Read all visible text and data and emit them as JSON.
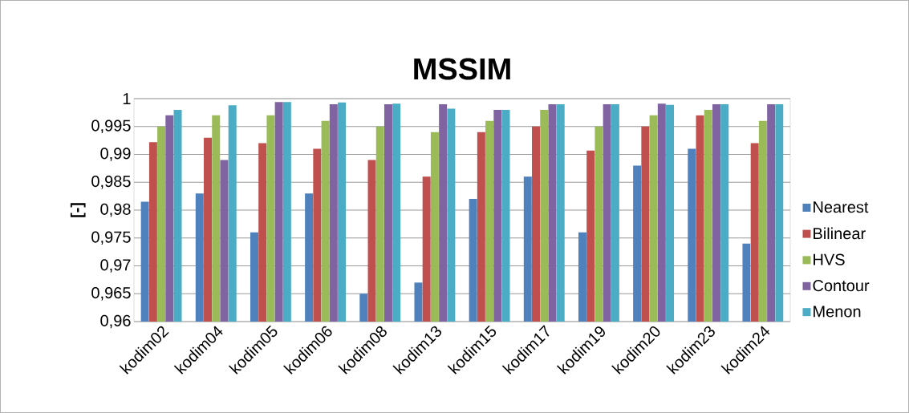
{
  "chart_data": {
    "type": "bar",
    "title": "MSSIM",
    "ylabel": "[-]",
    "categories": [
      "kodim02",
      "kodim04",
      "kodim05",
      "kodim06",
      "kodim08",
      "kodim13",
      "kodim15",
      "kodim17",
      "kodim19",
      "kodim20",
      "kodim23",
      "kodim24"
    ],
    "series": [
      {
        "name": "Nearest",
        "color": "#4f81bd",
        "values": [
          0.9815,
          0.983,
          0.976,
          0.983,
          0.965,
          0.967,
          0.982,
          0.986,
          0.976,
          0.988,
          0.991,
          0.974
        ]
      },
      {
        "name": "Bilinear",
        "color": "#c0504d",
        "values": [
          0.9922,
          0.993,
          0.992,
          0.991,
          0.989,
          0.986,
          0.994,
          0.995,
          0.9907,
          0.995,
          0.997,
          0.992
        ]
      },
      {
        "name": "HVS",
        "color": "#9bbb59",
        "values": [
          0.995,
          0.997,
          0.997,
          0.996,
          0.995,
          0.994,
          0.996,
          0.998,
          0.995,
          0.997,
          0.998,
          0.996
        ]
      },
      {
        "name": "Contour",
        "color": "#8064a2",
        "values": [
          0.997,
          0.989,
          0.9994,
          0.999,
          0.999,
          0.999,
          0.998,
          0.999,
          0.999,
          0.9991,
          0.999,
          0.999
        ]
      },
      {
        "name": "Menon",
        "color": "#4bacc6",
        "values": [
          0.998,
          0.9988,
          0.9994,
          0.9993,
          0.9991,
          0.9982,
          0.998,
          0.999,
          0.999,
          0.9989,
          0.999,
          0.999
        ]
      }
    ],
    "ylim": [
      0.96,
      1
    ],
    "yticks": [
      {
        "value": 0.96,
        "label": "0,96"
      },
      {
        "value": 0.965,
        "label": "0,965"
      },
      {
        "value": 0.97,
        "label": "0,97"
      },
      {
        "value": 0.975,
        "label": "0,975"
      },
      {
        "value": 0.98,
        "label": "0,98"
      },
      {
        "value": 0.985,
        "label": "0,985"
      },
      {
        "value": 0.99,
        "label": "0,99"
      },
      {
        "value": 0.995,
        "label": "0,995"
      },
      {
        "value": 1,
        "label": "1"
      }
    ],
    "grid": "y",
    "legend": "right"
  }
}
